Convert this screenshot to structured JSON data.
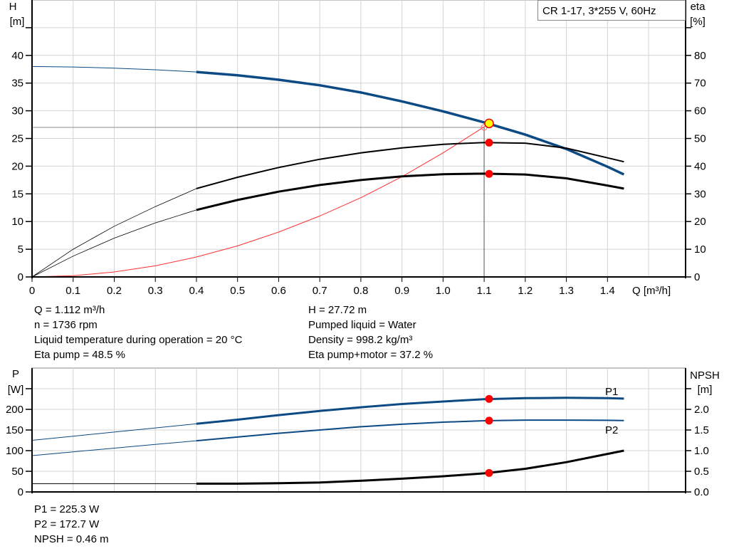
{
  "legend_box": "CR 1-17, 3*255 V, 60Hz",
  "info_top_left": [
    "Q = 1.112 m³/h",
    "n = 1736 rpm",
    "Liquid temperature during operation = 20 °C",
    "Eta pump = 48.5 %"
  ],
  "info_top_right": [
    "H = 27.72 m",
    "Pumped liquid = Water",
    "Density = 998.2 kg/m³",
    "Eta pump+motor = 37.2 %"
  ],
  "info_bottom": [
    "P1 = 225.3 W",
    "P2 = 172.7 W",
    "NPSH = 0.46 m"
  ],
  "colors": {
    "pump_curve": "#0c4a84",
    "efficiency": "#000000",
    "system_curve": "#ff3030",
    "operating_point": "#ff0000",
    "duty_point": "#ffff00",
    "grid": "#d4d4d4"
  },
  "chart_data": [
    {
      "type": "line",
      "xlabel": "Q [m³/h]",
      "ylabel": "H\n[m]",
      "y2label": "eta\n[%]",
      "xlim": [
        0,
        1.59
      ],
      "ylim": [
        0,
        50
      ],
      "y2lim": [
        0,
        100
      ],
      "xticks": [
        "0",
        "0.1",
        "0.2",
        "0.3",
        "0.4",
        "0.5",
        "0.6",
        "0.7",
        "0.8",
        "0.9",
        "1.0",
        "1.1",
        "1.2",
        "1.3",
        "1.4"
      ],
      "yticks": [
        "0",
        "5",
        "10",
        "15",
        "20",
        "25",
        "30",
        "35",
        "40"
      ],
      "y2ticks": [
        "0",
        "10",
        "20",
        "30",
        "40",
        "50",
        "60",
        "70",
        "80"
      ],
      "grid": true,
      "x": [
        0,
        0.1,
        0.2,
        0.3,
        0.4,
        0.5,
        0.6,
        0.7,
        0.8,
        0.9,
        1.0,
        1.1,
        1.2,
        1.3,
        1.4,
        1.44
      ],
      "series": [
        {
          "key": "H",
          "axis": "left",
          "values": [
            38,
            37.9,
            37.7,
            37.4,
            37.0,
            36.4,
            35.6,
            34.6,
            33.3,
            31.7,
            29.9,
            27.9,
            25.7,
            23.1,
            19.9,
            18.5
          ]
        },
        {
          "key": "eta_pump",
          "axis": "right",
          "values": [
            0,
            10,
            18.3,
            25.4,
            31.9,
            36,
            39.5,
            42.5,
            44.8,
            46.6,
            47.9,
            48.5,
            48.3,
            46.5,
            43,
            41.6
          ]
        },
        {
          "key": "eta_pump_motor",
          "axis": "right",
          "values": [
            0,
            7.5,
            14,
            19.5,
            24.2,
            27.8,
            30.8,
            33.2,
            35,
            36.3,
            37.1,
            37.3,
            37,
            35.6,
            33,
            31.9
          ]
        },
        {
          "key": "system",
          "axis": "left",
          "x": [
            0,
            0.1,
            0.2,
            0.3,
            0.4,
            0.5,
            0.6,
            0.7,
            0.8,
            0.9,
            1.0,
            1.1,
            1.112
          ],
          "values": [
            0,
            0.22,
            0.9,
            2.0,
            3.6,
            5.6,
            8.1,
            11.0,
            14.3,
            18.1,
            22.4,
            27.1,
            27.72
          ]
        }
      ],
      "operating_point": {
        "Q": 1.112,
        "H": 27.72,
        "eta_pump": 48.5,
        "eta_pump_motor": 37.2
      }
    },
    {
      "type": "line",
      "xlabel": "",
      "ylabel": "P\n[W]",
      "y2label": "NPSH\n[m]",
      "xlim": [
        0,
        1.59
      ],
      "ylim": [
        0,
        300
      ],
      "y2lim": [
        0,
        3.0
      ],
      "yticks": [
        "0",
        "50",
        "100",
        "150",
        "200"
      ],
      "y2ticks": [
        "0.0",
        "0.5",
        "1.0",
        "1.5",
        "2.0"
      ],
      "grid": true,
      "x": [
        0,
        0.1,
        0.2,
        0.3,
        0.4,
        0.5,
        0.6,
        0.7,
        0.8,
        0.9,
        1.0,
        1.1,
        1.2,
        1.3,
        1.4,
        1.44
      ],
      "series": [
        {
          "key": "P1",
          "name": "P1",
          "axis": "left",
          "values": [
            125,
            135,
            145,
            155,
            165,
            175,
            186,
            196,
            205,
            213,
            219,
            224.5,
            227,
            228,
            227,
            226
          ]
        },
        {
          "key": "P2",
          "name": "P2",
          "axis": "left",
          "values": [
            88,
            97,
            106,
            115,
            124,
            133,
            142,
            150,
            158,
            164,
            169,
            172.5,
            174,
            174,
            173.5,
            173
          ]
        },
        {
          "key": "NPSH",
          "axis": "right",
          "values": [
            0.2,
            0.2,
            0.2,
            0.2,
            0.2,
            0.2,
            0.21,
            0.23,
            0.27,
            0.32,
            0.38,
            0.45,
            0.56,
            0.72,
            0.92,
            1.0
          ]
        }
      ],
      "operating_point": {
        "Q": 1.112,
        "P1": 225.3,
        "P2": 172.7,
        "NPSH": 0.46
      }
    }
  ]
}
